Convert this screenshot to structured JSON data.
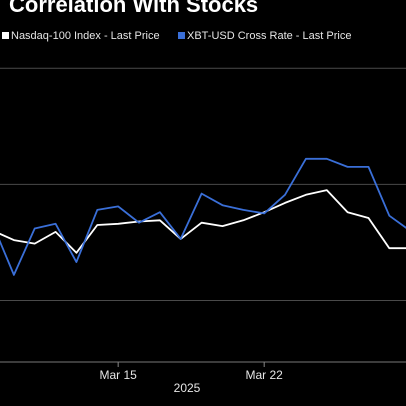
{
  "chart_data": {
    "type": "line",
    "title": "Correlation With Stocks",
    "xlabel": "2025",
    "categories": [
      null,
      null,
      null,
      null,
      null,
      null,
      "Mar 15",
      null,
      null,
      null,
      null,
      null,
      null,
      "Mar 22",
      null,
      null,
      null,
      null,
      null,
      null,
      null
    ],
    "series": [
      {
        "name": "Nasdaq-100 Index - Last Price",
        "color": "#ffffff",
        "values": [
          1.6,
          1.52,
          1.49,
          1.59,
          1.41,
          1.65,
          1.66,
          1.68,
          1.69,
          1.53,
          1.67,
          1.64,
          1.69,
          1.76,
          1.84,
          1.91,
          1.95,
          1.76,
          1.71,
          1.45,
          1.45
        ]
      },
      {
        "name": "XBT-USD Cross Rate - Last Price",
        "color": "#3a6fd8",
        "values": [
          1.65,
          1.22,
          1.62,
          1.66,
          1.33,
          1.78,
          1.81,
          1.67,
          1.76,
          1.53,
          1.92,
          1.82,
          1.78,
          1.75,
          1.91,
          2.22,
          2.22,
          2.15,
          2.15,
          1.73,
          1.6
        ]
      }
    ],
    "ylim": [
      0.47,
      3.2
    ],
    "yticks": [
      1,
      2,
      3
    ],
    "grid": true
  }
}
